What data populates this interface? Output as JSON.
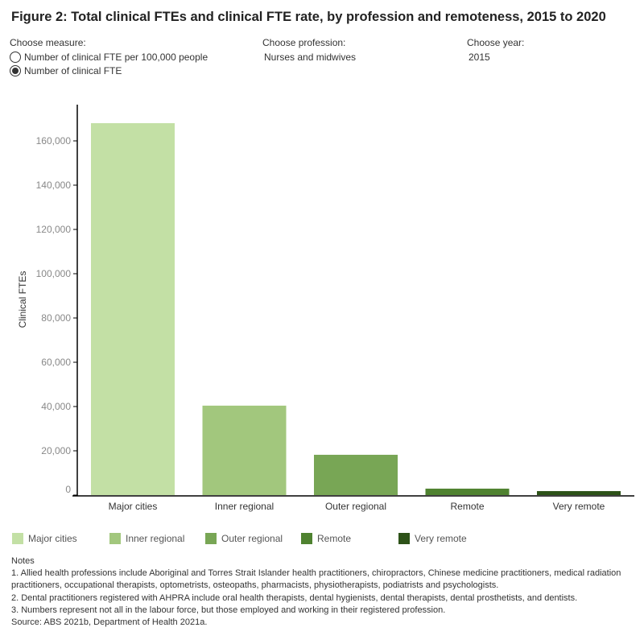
{
  "title": "Figure 2: Total clinical FTEs and clinical FTE rate, by profession and remoteness, 2015 to 2020",
  "controls": {
    "measure_label": "Choose measure:",
    "measure_options": [
      {
        "label": "Number of clinical FTE per 100,000 people",
        "selected": false
      },
      {
        "label": "Number of clinical FTE",
        "selected": true
      }
    ],
    "profession_label": "Choose profession:",
    "profession_value": "Nurses and midwives",
    "year_label": "Choose year:",
    "year_value": "2015"
  },
  "chart_data": {
    "type": "bar",
    "title": "",
    "xlabel": "",
    "ylabel": "Clinical FTEs",
    "categories": [
      "Major cities",
      "Inner regional",
      "Outer regional",
      "Remote",
      "Very remote"
    ],
    "values": [
      168000,
      40400,
      18200,
      2900,
      1800
    ],
    "colors": [
      "#c3e0a5",
      "#a2c77d",
      "#78a655",
      "#4f8230",
      "#2d5218"
    ],
    "ylim": [
      0,
      175000
    ],
    "yticks": [
      0,
      20000,
      40000,
      60000,
      80000,
      100000,
      120000,
      140000,
      160000
    ],
    "ytick_labels": [
      "0",
      "20,000",
      "40,000",
      "60,000",
      "80,000",
      "100,000",
      "120,000",
      "140,000",
      "160,000"
    ],
    "grid": false,
    "legend_position": "bottom"
  },
  "legend": [
    "Major cities",
    "Inner regional",
    "Outer regional",
    "Remote",
    "Very remote"
  ],
  "notes": {
    "heading": "Notes",
    "lines": [
      "1. Allied health professions include Aboriginal and Torres Strait Islander health practitioners, chiropractors, Chinese medicine practitioners, medical radiation practitioners, occupational therapists, optometrists, osteopaths, pharmacists, physiotherapists, podiatrists and psychologists.",
      "2. Dental practitioners registered with AHPRA include oral health therapists, dental hygienists, dental therapists, dental prosthetists, and dentists.",
      "3. Numbers represent not all in the labour force, but those employed and working in their registered profession.",
      "Source:  ABS 2021b, Department of Health 2021a."
    ]
  }
}
